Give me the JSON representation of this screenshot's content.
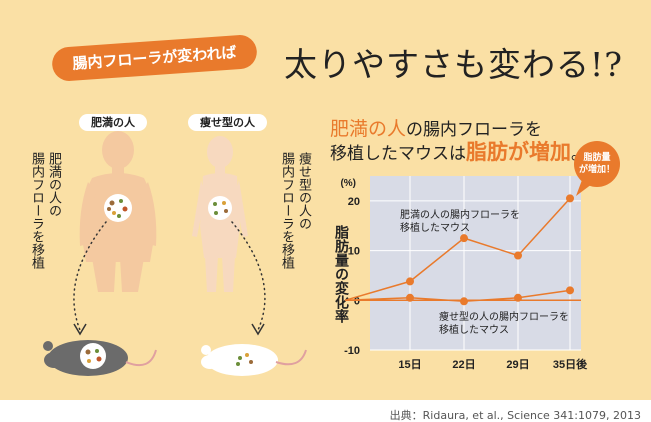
{
  "header": {
    "badge": "腸内フローラが変われば",
    "headline": "太りやすさも変わる!?"
  },
  "left": {
    "obese_tag": "肥満の人",
    "lean_tag": "痩せ型の人",
    "obese_caption": [
      "肥満の人の",
      "腸内フローラを移植"
    ],
    "lean_caption": [
      "痩せ型の人の",
      "腸内フローラを移植"
    ]
  },
  "chart_title": {
    "line1_hl": "肥満の人",
    "line1_rest": "の腸内フローラを",
    "line2_pre": "移植したマウスは",
    "line2_hl": "脂肪が増加",
    "line2_end": "。"
  },
  "chart_data": {
    "type": "line",
    "ylabel": "脂肪量の変化率",
    "yunit": "(%)",
    "ylim": [
      -10,
      25
    ],
    "yticks": [
      -10,
      0,
      10,
      20
    ],
    "x": [
      "",
      "15日",
      "22日",
      "29日",
      "35日後"
    ],
    "series": [
      {
        "name": "肥満の人の腸内フローラを移植したマウス",
        "values": [
          0,
          3.8,
          12.5,
          9,
          20.5
        ]
      },
      {
        "name": "痩せ型の人の腸内フローラを移植したマウス",
        "values": [
          0,
          0.5,
          -0.2,
          0.5,
          2
        ]
      }
    ],
    "callout": "脂肪量が増加！",
    "grid": true
  },
  "colors": {
    "background": "#fae0a5",
    "accent": "#e97a2c",
    "plot_bg": "#d8dbe6"
  },
  "footer": "出典：Ridaura, et al., Science 341:1079, 2013"
}
